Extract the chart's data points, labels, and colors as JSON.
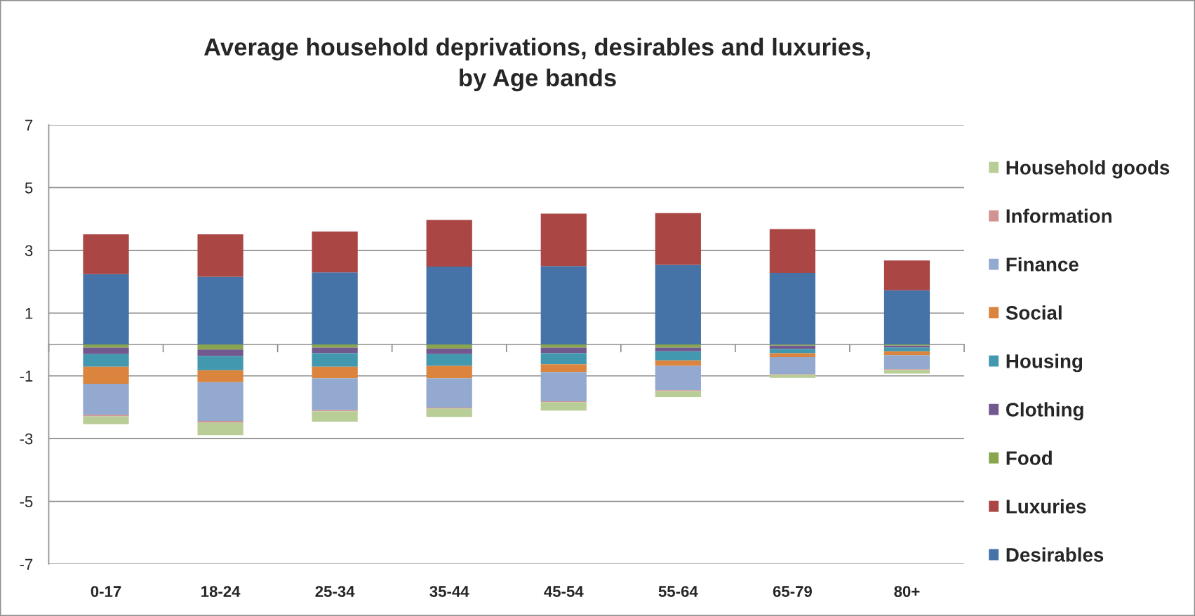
{
  "chart_data": {
    "type": "bar",
    "stacked": true,
    "title": "Average household deprivations, desirables and luxuries,\nby Age bands",
    "categories": [
      "0-17",
      "18-24",
      "25-34",
      "35-44",
      "45-54",
      "55-64",
      "65-79",
      "80+"
    ],
    "series": [
      {
        "name": "Desirables",
        "color": "#4572a7",
        "values": [
          2.24,
          2.16,
          2.3,
          2.48,
          2.5,
          2.54,
          2.28,
          1.73
        ]
      },
      {
        "name": "Luxuries",
        "color": "#aa4643",
        "values": [
          1.27,
          1.35,
          1.3,
          1.49,
          1.67,
          1.65,
          1.4,
          0.95
        ]
      },
      {
        "name": "Food",
        "color": "#89a54e",
        "values": [
          -0.1,
          -0.16,
          -0.1,
          -0.13,
          -0.1,
          -0.1,
          -0.04,
          -0.04
        ]
      },
      {
        "name": "Clothing",
        "color": "#71588f",
        "values": [
          -0.21,
          -0.21,
          -0.18,
          -0.18,
          -0.18,
          -0.12,
          -0.1,
          -0.06
        ]
      },
      {
        "name": "Housing",
        "color": "#4198af",
        "values": [
          -0.4,
          -0.45,
          -0.43,
          -0.37,
          -0.35,
          -0.29,
          -0.14,
          -0.12
        ]
      },
      {
        "name": "Social",
        "color": "#db843d",
        "values": [
          -0.54,
          -0.38,
          -0.37,
          -0.4,
          -0.25,
          -0.17,
          -0.12,
          -0.12
        ]
      },
      {
        "name": "Finance",
        "color": "#93a9cf",
        "values": [
          -0.99,
          -1.24,
          -1.01,
          -0.93,
          -0.93,
          -0.78,
          -0.55,
          -0.45
        ]
      },
      {
        "name": "Information",
        "color": "#d19392",
        "values": [
          -0.05,
          -0.05,
          -0.04,
          -0.03,
          -0.03,
          -0.03,
          -0.01,
          -0.02
        ]
      },
      {
        "name": "Household goods",
        "color": "#b9cd96",
        "values": [
          -0.25,
          -0.4,
          -0.33,
          -0.27,
          -0.27,
          -0.19,
          -0.11,
          -0.12
        ]
      }
    ],
    "ylim": [
      -7,
      7
    ],
    "yticks": [
      -7,
      -5,
      -3,
      -1,
      1,
      3,
      5,
      7
    ],
    "grid": "y",
    "legend": "right"
  }
}
